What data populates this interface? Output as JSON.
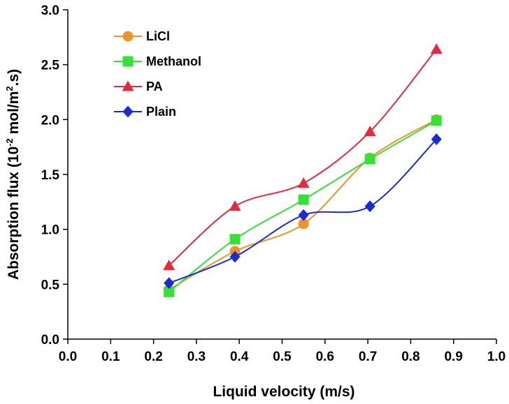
{
  "chart_data": {
    "type": "line",
    "title": "",
    "xlabel": "Liquid velocity (m/s)",
    "ylabel_main": "Absorption flux (10",
    "ylabel_exp": "-2",
    "ylabel_rest": " mol/m",
    "ylabel_exp2": "2",
    "ylabel_end": ".s)",
    "xlim": [
      0.0,
      1.0
    ],
    "ylim": [
      0.0,
      3.0
    ],
    "xticks": [
      "0.0",
      "0.1",
      "0.2",
      "0.3",
      "0.4",
      "0.5",
      "0.6",
      "0.7",
      "0.8",
      "0.9",
      "1.0"
    ],
    "yticks": [
      "0.0",
      "0.5",
      "1.0",
      "1.5",
      "2.0",
      "2.5",
      "3.0"
    ],
    "x": [
      0.236,
      0.39,
      0.55,
      0.705,
      0.86
    ],
    "series": [
      {
        "name": "LiCl",
        "color": "#f0922a",
        "marker": "circle",
        "values": [
          0.45,
          0.8,
          1.05,
          1.65,
          2.0
        ]
      },
      {
        "name": "Methanol",
        "color": "#33e233",
        "marker": "square",
        "values": [
          0.43,
          0.91,
          1.27,
          1.64,
          1.99
        ]
      },
      {
        "name": "PA",
        "color": "#e8293b",
        "marker": "triangle",
        "values": [
          0.67,
          1.21,
          1.42,
          1.89,
          2.64
        ]
      },
      {
        "name": "Plain",
        "color": "#1a2bd6",
        "marker": "diamond",
        "values": [
          0.51,
          0.75,
          1.13,
          1.21,
          1.82
        ]
      }
    ],
    "legend_position": "top-left"
  }
}
